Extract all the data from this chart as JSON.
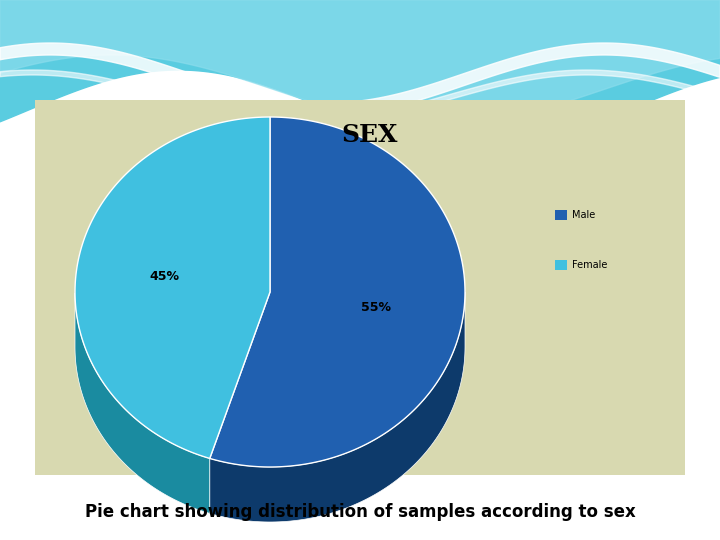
{
  "title": "SEX",
  "labels": [
    "Male",
    "Female"
  ],
  "sizes": [
    55,
    45
  ],
  "colors_top": [
    "#2060B0",
    "#40C0E0"
  ],
  "colors_side": [
    "#0D3A6B",
    "#1A8BA0"
  ],
  "legend_colors": [
    "#2060B0",
    "#40C0E0"
  ],
  "bg_color": "#D8D9B0",
  "outer_bg": "#FFFFFF",
  "wave_color": "#5ACCE0",
  "caption": "Pie chart showing distribution of samples according to sex",
  "title_fontsize": 18,
  "pct_fontsize": 9,
  "legend_fontsize": 7,
  "caption_fontsize": 12,
  "startangle": 90,
  "pie_depth": 0.12,
  "pct_labels": [
    "55%",
    "45%"
  ]
}
